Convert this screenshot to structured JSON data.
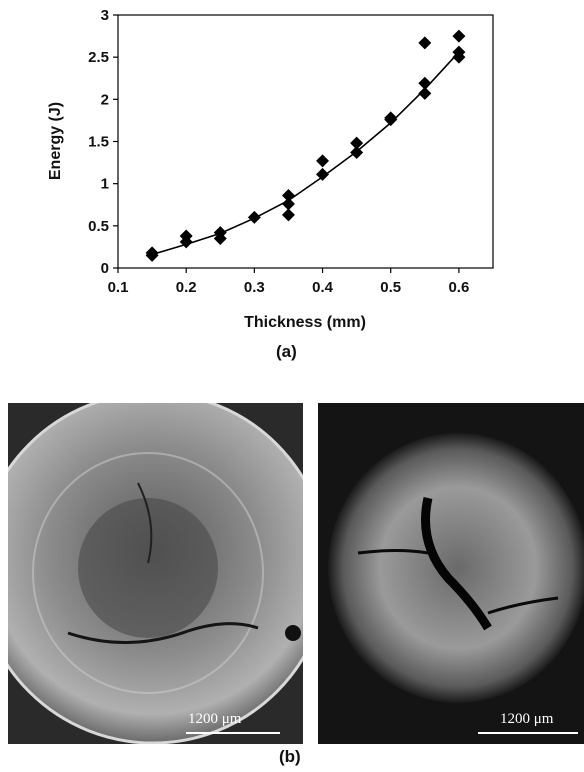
{
  "chart_data": {
    "type": "scatter",
    "title": "",
    "xlabel": "Thickness (mm)",
    "ylabel": "Energy (J)",
    "xlim": [
      0.1,
      0.65
    ],
    "ylim": [
      0,
      3
    ],
    "xticks": [
      "0.1",
      "0.2",
      "0.3",
      "0.4",
      "0.5",
      "0.6"
    ],
    "yticks": [
      "0",
      "0.5",
      "1",
      "1.5",
      "2",
      "2.5",
      "3"
    ],
    "grid": false,
    "legend": "none",
    "marker": "diamond",
    "points": [
      [
        0.15,
        0.18
      ],
      [
        0.15,
        0.15
      ],
      [
        0.2,
        0.38
      ],
      [
        0.2,
        0.31
      ],
      [
        0.25,
        0.42
      ],
      [
        0.25,
        0.35
      ],
      [
        0.3,
        0.6
      ],
      [
        0.35,
        0.86
      ],
      [
        0.35,
        0.76
      ],
      [
        0.35,
        0.63
      ],
      [
        0.4,
        1.27
      ],
      [
        0.4,
        1.11
      ],
      [
        0.45,
        1.48
      ],
      [
        0.45,
        1.37
      ],
      [
        0.5,
        1.78
      ],
      [
        0.5,
        1.76
      ],
      [
        0.55,
        2.67
      ],
      [
        0.55,
        2.19
      ],
      [
        0.55,
        2.07
      ],
      [
        0.6,
        2.75
      ],
      [
        0.6,
        2.56
      ],
      [
        0.6,
        2.5
      ]
    ],
    "fit_curve": {
      "x": [
        0.15,
        0.2,
        0.25,
        0.3,
        0.35,
        0.4,
        0.45,
        0.5,
        0.55,
        0.6
      ],
      "y": [
        0.16,
        0.28,
        0.41,
        0.59,
        0.8,
        1.08,
        1.38,
        1.72,
        2.12,
        2.56
      ]
    }
  },
  "captions": {
    "a": "(a)",
    "b": "(b)"
  },
  "micrographs": [
    {
      "scale_label": "1200 μm"
    },
    {
      "scale_label": "1200 μm"
    }
  ],
  "colors": {
    "marker": "#000000",
    "panel_background": "#1a1a1a",
    "scale_bar": "#ffffff"
  }
}
